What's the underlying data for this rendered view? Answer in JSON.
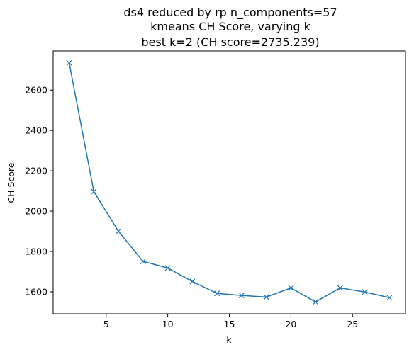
{
  "chart_data": {
    "type": "line",
    "title_lines": [
      "ds4 reduced by rp n_components=57",
      "kmeans CH Score, varying k",
      "best k=2 (CH score=2735.239)"
    ],
    "xlabel": "k",
    "ylabel": "CH Score",
    "x": [
      2,
      4,
      6,
      8,
      10,
      12,
      14,
      16,
      18,
      20,
      22,
      24,
      26,
      28
    ],
    "series": [
      {
        "values": [
          2735.2,
          2097,
          1900,
          1751,
          1718,
          1651,
          1592,
          1582,
          1574,
          1619,
          1550,
          1619,
          1599,
          1571
        ],
        "color": "#1f77b4",
        "marker": "x"
      }
    ],
    "xlim": [
      0.7,
      29.3
    ],
    "ylim": [
      1491,
      2794
    ],
    "xticks": [
      5,
      10,
      15,
      20,
      25
    ],
    "yticks": [
      1600,
      1800,
      2000,
      2200,
      2400,
      2600
    ],
    "grid": false
  }
}
